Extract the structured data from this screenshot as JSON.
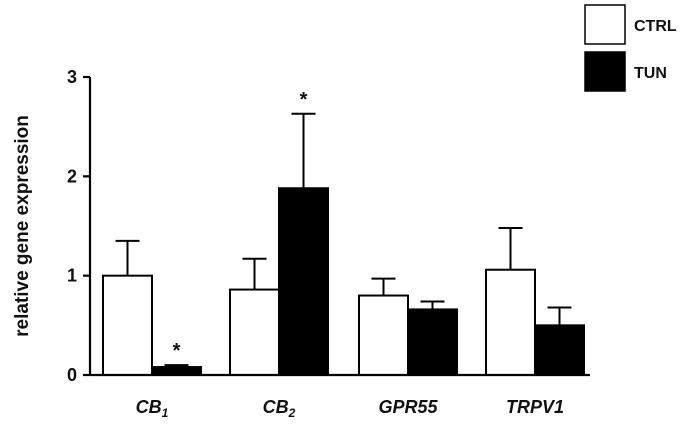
{
  "chart_data": {
    "type": "bar",
    "ylabel": "relative gene expression",
    "ylim": [
      0,
      3
    ],
    "yticks": [
      "0",
      "1",
      "2",
      "3"
    ],
    "categories": [
      {
        "main": "CB",
        "sub": "1"
      },
      {
        "main": "CB",
        "sub": "2"
      },
      {
        "main": "GPR55",
        "sub": ""
      },
      {
        "main": "TRPV1",
        "sub": ""
      }
    ],
    "series": [
      {
        "name": "CTRL",
        "fill": "#ffffff",
        "values": [
          1.0,
          0.86,
          0.8,
          1.06
        ],
        "errors": [
          0.35,
          0.31,
          0.17,
          0.42
        ]
      },
      {
        "name": "TUN",
        "fill": "#000000",
        "values": [
          0.08,
          1.88,
          0.66,
          0.5
        ],
        "errors": [
          0.02,
          0.75,
          0.08,
          0.18
        ]
      }
    ],
    "significance": [
      {
        "category": 0,
        "series": 1,
        "label": "*"
      },
      {
        "category": 1,
        "series": 1,
        "label": "*"
      }
    ],
    "legend_position": "top-right",
    "grid": false
  }
}
